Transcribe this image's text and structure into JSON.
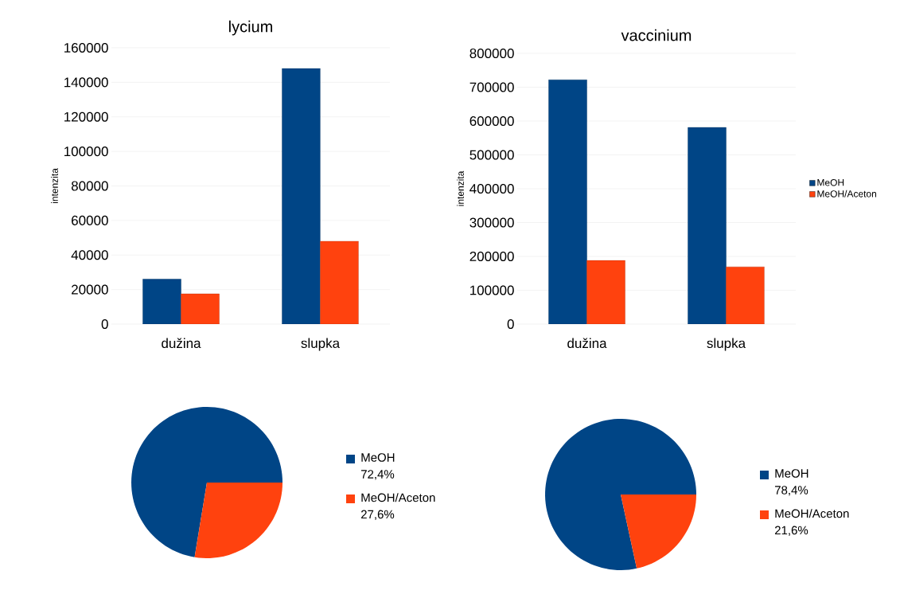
{
  "chart_data": [
    {
      "type": "bar",
      "title": "lycium",
      "ylabel": "intenzita",
      "categories": [
        "dužina",
        "slupka"
      ],
      "series": [
        {
          "color": "#004586",
          "values": [
            26000,
            148000
          ]
        },
        {
          "color": "#ff420e",
          "values": [
            17500,
            48000
          ]
        }
      ],
      "ylim": [
        0,
        160000
      ],
      "yticks": [
        0,
        20000,
        40000,
        60000,
        80000,
        100000,
        120000,
        140000,
        160000
      ],
      "grid": "y"
    },
    {
      "type": "bar",
      "title": "vaccinium",
      "ylabel": "intenzita",
      "categories": [
        "dužina",
        "slupka"
      ],
      "series": [
        {
          "name": "MeOH",
          "color": "#004586",
          "values": [
            722000,
            581000
          ]
        },
        {
          "name": "MeOH/Aceton",
          "color": "#ff420e",
          "values": [
            188000,
            169000
          ]
        }
      ],
      "ylim": [
        0,
        800000
      ],
      "yticks": [
        0,
        100000,
        200000,
        300000,
        400000,
        500000,
        600000,
        700000,
        800000
      ],
      "grid": "y",
      "legend": "right"
    },
    {
      "type": "pie",
      "categories": [
        "MeOH",
        "MeOH/Aceton"
      ],
      "values": [
        72.4,
        27.6
      ],
      "colors": [
        "#004586",
        "#ff420e"
      ],
      "value_labels": [
        "72,4%",
        "27,6%"
      ],
      "legend": "right"
    },
    {
      "type": "pie",
      "categories": [
        "MeOH",
        "MeOH/Aceton"
      ],
      "values": [
        78.4,
        21.6
      ],
      "colors": [
        "#004586",
        "#ff420e"
      ],
      "value_labels": [
        "78,4%",
        "21,6%"
      ],
      "legend": "right"
    }
  ]
}
